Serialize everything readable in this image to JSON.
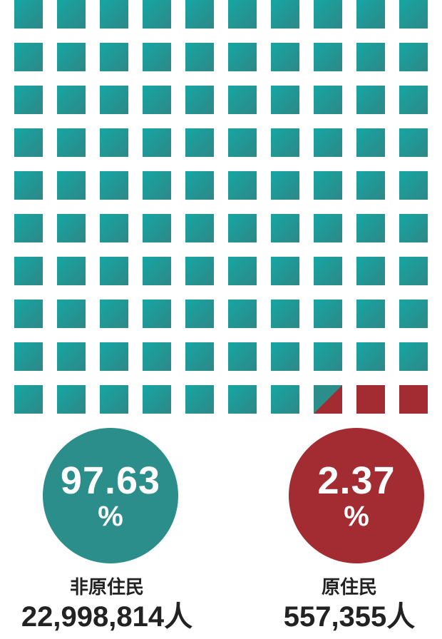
{
  "chart_data": {
    "type": "waffle",
    "grid": {
      "rows": 10,
      "cols": 10,
      "total_cells": 100
    },
    "series": [
      {
        "name": "非原住民",
        "percent": 97.63,
        "count": 22998814,
        "color": "#1b9a9a",
        "color_end": "#2b8e8a"
      },
      {
        "name": "原住民",
        "percent": 2.37,
        "count": 557355,
        "color": "#a32c32"
      }
    ]
  },
  "bubbles": [
    {
      "value": "97.63",
      "unit": "%"
    },
    {
      "value": "2.37",
      "unit": "%"
    }
  ],
  "labels": [
    {
      "name": "非原住民",
      "count": "22,998,814人"
    },
    {
      "name": "原住民",
      "count": "557,355人"
    }
  ]
}
